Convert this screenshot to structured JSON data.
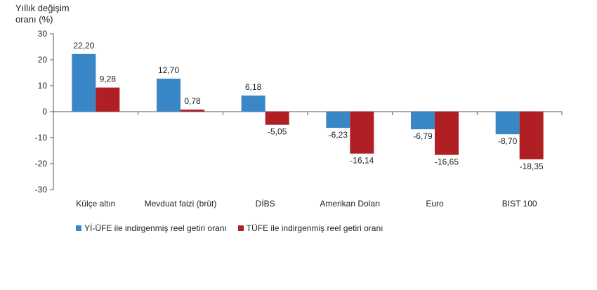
{
  "chart_data": {
    "type": "bar",
    "ylabel": "Yıllık değişim\noranı (%)",
    "ylim": [
      -30,
      30
    ],
    "yticks": [
      30,
      20,
      10,
      0,
      -10,
      -20,
      -30
    ],
    "categories": [
      "Külçe altın",
      "Mevduat faizi (brüt)",
      "DİBS",
      "Amerikan Doları",
      "Euro",
      "BIST 100"
    ],
    "series": [
      {
        "name": "Yİ-ÜFE ile indirgenmiş reel getiri oranı",
        "color": "#3a87c8",
        "values": [
          22.2,
          12.7,
          6.18,
          -6.23,
          -6.79,
          -8.7
        ],
        "labels": [
          "22,20",
          "12,70",
          "6,18",
          "-6,23",
          "-6,79",
          "-8,70"
        ]
      },
      {
        "name": "TÜFE ile indirgenmiş reel getiri oranı",
        "color": "#b01f24",
        "values": [
          9.28,
          0.78,
          -5.05,
          -16.14,
          -16.65,
          -18.35
        ],
        "labels": [
          "9,28",
          "0,78",
          "-5,05",
          "-16,14",
          "-16,65",
          "-18,35"
        ]
      }
    ],
    "grid": false,
    "legend_position": "bottom"
  }
}
